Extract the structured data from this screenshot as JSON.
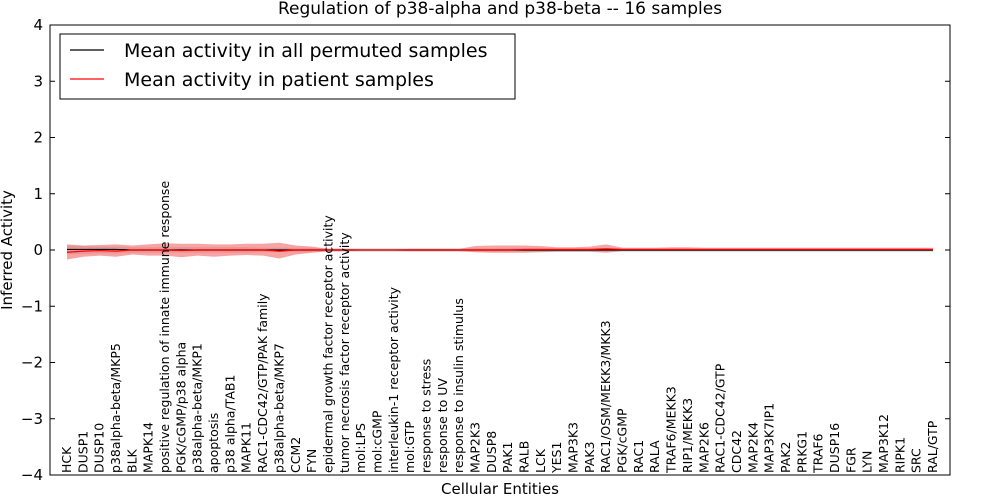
{
  "chart_data": {
    "type": "line",
    "title": "Regulation of p38-alpha and p38-beta -- 16 samples",
    "xlabel": "Cellular Entities",
    "ylabel": "Inferred Activity",
    "ylim": [
      -4,
      4
    ],
    "yticks": [
      -4,
      -3,
      -2,
      -1,
      0,
      1,
      2,
      3,
      4
    ],
    "ytick_labels": [
      "−4",
      "−3",
      "−2",
      "−1",
      "0",
      "1",
      "2",
      "3",
      "4"
    ],
    "legend_position": "top-left",
    "categories": [
      "HCK",
      "DUSP1",
      "DUSP10",
      "p38alpha-beta/MKP5",
      "BLK",
      "MAPK14",
      "positive regulation of innate immune response",
      "PGK/cGMP/p38 alpha",
      "p38alpha-beta/MKP1",
      "apoptosis",
      "p38 alpha/TAB1",
      "MAPK11",
      "RAC1-CDC42/GTP/PAK family",
      "p38alpha-beta/MKP7",
      "CCM2",
      "FYN",
      "epidermal growth factor receptor activity",
      "tumor necrosis factor receptor activity",
      "mol:LPS",
      "mol:cGMP",
      "interleukin-1 receptor activity",
      "mol:GTP",
      "response to stress",
      "response to UV",
      "response to insulin stimulus",
      "MAP2K3",
      "DUSP8",
      "PAK1",
      "RALB",
      "LCK",
      "YES1",
      "MAP3K3",
      "PAK3",
      "RAC1/OSM/MEKK3/MKK3",
      "PGK/cGMP",
      "RAC1",
      "RALA",
      "TRAF6/MEKK3",
      "RIP1/MEKK3",
      "MAP2K6",
      "RAC1-CDC42/GTP",
      "CDC42",
      "MAP2K4",
      "MAP3K7IP1",
      "PAK2",
      "PRKG1",
      "TRAF6",
      "DUSP16",
      "FGR",
      "LYN",
      "MAP3K12",
      "RIPK1",
      "SRC",
      "RAL/GTP"
    ],
    "series": [
      {
        "name": "Mean activity in all permuted samples",
        "color": "#000000",
        "values": [
          0.01,
          0.01,
          0.01,
          0.01,
          0.0,
          0.0,
          0.0,
          0.0,
          0.0,
          0.0,
          0.0,
          0.0,
          0.0,
          0.0,
          0.0,
          0.0,
          0.0,
          0.0,
          0.0,
          0.0,
          0.0,
          0.0,
          0.0,
          0.0,
          0.0,
          0.0,
          0.0,
          0.0,
          0.0,
          0.0,
          0.0,
          0.0,
          0.0,
          0.0,
          0.0,
          0.0,
          0.0,
          0.0,
          0.0,
          0.0,
          0.0,
          0.0,
          0.0,
          0.0,
          0.0,
          0.0,
          0.0,
          0.0,
          0.0,
          0.0,
          0.0,
          0.0,
          0.0,
          0.0
        ],
        "band_low": [
          -0.08,
          -0.07,
          -0.06,
          -0.06,
          -0.05,
          -0.05,
          -0.05,
          -0.05,
          -0.05,
          -0.05,
          -0.05,
          -0.05,
          -0.04,
          -0.04,
          -0.04,
          -0.04,
          -0.03,
          -0.03,
          -0.03,
          -0.03,
          -0.03,
          -0.03,
          -0.03,
          -0.03,
          -0.03,
          -0.03,
          -0.03,
          -0.03,
          -0.03,
          -0.03,
          -0.03,
          -0.03,
          -0.03,
          -0.03,
          -0.03,
          -0.03,
          -0.03,
          -0.03,
          -0.03,
          -0.03,
          -0.03,
          -0.03,
          -0.03,
          -0.03,
          -0.03,
          -0.03,
          -0.03,
          -0.03,
          -0.03,
          -0.03,
          -0.03,
          -0.03,
          -0.03,
          -0.03
        ],
        "band_high": [
          0.08,
          0.07,
          0.06,
          0.06,
          0.05,
          0.05,
          0.05,
          0.05,
          0.05,
          0.05,
          0.05,
          0.05,
          0.04,
          0.04,
          0.04,
          0.04,
          0.03,
          0.03,
          0.03,
          0.03,
          0.03,
          0.03,
          0.03,
          0.03,
          0.03,
          0.03,
          0.03,
          0.03,
          0.03,
          0.03,
          0.03,
          0.03,
          0.03,
          0.03,
          0.03,
          0.03,
          0.03,
          0.03,
          0.03,
          0.03,
          0.03,
          0.03,
          0.03,
          0.03,
          0.03,
          0.03,
          0.03,
          0.03,
          0.03,
          0.03,
          0.03,
          0.03,
          0.03,
          0.03
        ]
      },
      {
        "name": "Mean activity in patient samples",
        "color": "#ff0000",
        "values": [
          -0.04,
          -0.02,
          -0.01,
          -0.02,
          0.0,
          0.0,
          0.0,
          -0.01,
          0.0,
          0.0,
          0.0,
          0.0,
          0.0,
          -0.02,
          0.0,
          0.0,
          0.0,
          0.0,
          0.0,
          0.0,
          0.0,
          0.0,
          0.0,
          0.0,
          0.0,
          0.0,
          0.0,
          0.0,
          0.01,
          0.01,
          0.01,
          0.01,
          0.01,
          0.02,
          0.01,
          0.01,
          0.01,
          0.01,
          0.01,
          0.01,
          0.01,
          0.01,
          0.01,
          0.01,
          0.01,
          0.01,
          0.01,
          0.01,
          0.01,
          0.01,
          0.01,
          0.01,
          0.01,
          0.01
        ],
        "band_low": [
          -0.17,
          -0.12,
          -0.1,
          -0.12,
          -0.08,
          -0.1,
          -0.1,
          -0.13,
          -0.1,
          -0.12,
          -0.1,
          -0.09,
          -0.1,
          -0.15,
          -0.08,
          -0.05,
          -0.02,
          -0.02,
          -0.01,
          -0.01,
          -0.01,
          -0.02,
          -0.02,
          -0.02,
          -0.02,
          -0.04,
          -0.05,
          -0.05,
          -0.05,
          -0.04,
          -0.03,
          -0.03,
          -0.03,
          -0.05,
          -0.02,
          -0.02,
          -0.02,
          -0.02,
          -0.02,
          -0.02,
          -0.02,
          -0.02,
          -0.02,
          -0.02,
          -0.02,
          -0.02,
          -0.02,
          -0.02,
          -0.02,
          -0.02,
          -0.02,
          -0.02,
          -0.02,
          -0.02
        ],
        "band_high": [
          0.1,
          0.08,
          0.09,
          0.1,
          0.08,
          0.1,
          0.12,
          0.11,
          0.11,
          0.1,
          0.1,
          0.11,
          0.11,
          0.13,
          0.08,
          0.06,
          0.02,
          0.02,
          0.01,
          0.01,
          0.01,
          0.02,
          0.02,
          0.02,
          0.02,
          0.07,
          0.08,
          0.08,
          0.08,
          0.07,
          0.05,
          0.05,
          0.06,
          0.1,
          0.04,
          0.04,
          0.04,
          0.05,
          0.05,
          0.04,
          0.04,
          0.04,
          0.04,
          0.04,
          0.04,
          0.04,
          0.04,
          0.04,
          0.04,
          0.04,
          0.04,
          0.04,
          0.04,
          0.04
        ]
      }
    ]
  }
}
